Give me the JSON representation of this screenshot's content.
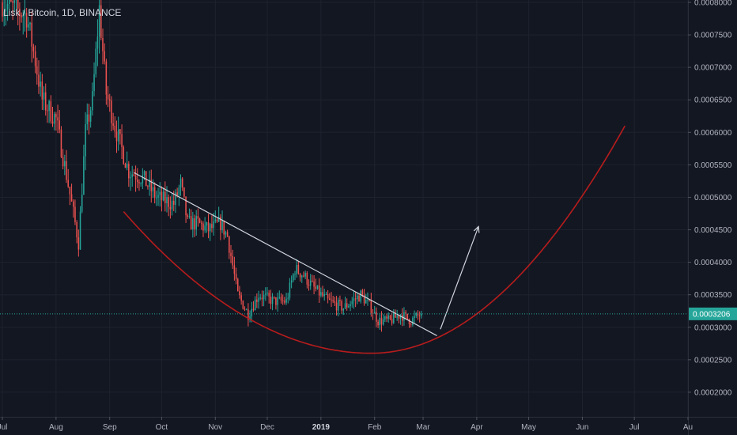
{
  "title": "Lisk / Bitcoin, 1D, BINANCE",
  "colors": {
    "background": "#131722",
    "up": "#26a69a",
    "down": "#ef5350",
    "trendline": "#d1d4dc",
    "curve": "#b71c1c",
    "arrow": "#d1d4dc",
    "price_line": "#26a69a"
  },
  "chart_data": {
    "type": "candlestick",
    "title": "Lisk / Bitcoin, 1D, BINANCE",
    "xlabel": "",
    "ylabel": "",
    "ylim": [
      0.00015,
      0.0008
    ],
    "y_ticks": [
      "0.0008000",
      "0.0007500",
      "0.0007000",
      "0.0006500",
      "0.0006000",
      "0.0005500",
      "0.0005000",
      "0.0004500",
      "0.0004000",
      "0.0003500",
      "0.0003000",
      "0.0002500",
      "0.0002000"
    ],
    "x_ticks": [
      {
        "label": "Jul",
        "date": "2018-07-01"
      },
      {
        "label": "Aug",
        "date": "2018-08-01"
      },
      {
        "label": "Sep",
        "date": "2018-09-01"
      },
      {
        "label": "Oct",
        "date": "2018-10-01"
      },
      {
        "label": "Nov",
        "date": "2018-11-01"
      },
      {
        "label": "Dec",
        "date": "2018-12-01"
      },
      {
        "label": "2019",
        "date": "2019-01-01",
        "bold": true
      },
      {
        "label": "Feb",
        "date": "2019-02-01"
      },
      {
        "label": "Mar",
        "date": "2019-03-01"
      },
      {
        "label": "Apr",
        "date": "2019-04-01"
      },
      {
        "label": "May",
        "date": "2019-05-01"
      },
      {
        "label": "Jun",
        "date": "2019-06-01"
      },
      {
        "label": "Jul",
        "date": "2019-07-01"
      },
      {
        "label": "Au",
        "date": "2019-08-01"
      }
    ],
    "current_price": "0.0003206",
    "price_path": [
      {
        "date": "2018-07-01",
        "price": 0.0008
      },
      {
        "date": "2018-07-15",
        "price": 0.00078
      },
      {
        "date": "2018-07-20",
        "price": 0.00071
      },
      {
        "date": "2018-07-24",
        "price": 0.00065
      },
      {
        "date": "2018-08-01",
        "price": 0.00062
      },
      {
        "date": "2018-08-08",
        "price": 0.00052
      },
      {
        "date": "2018-08-14",
        "price": 0.00043
      },
      {
        "date": "2018-08-18",
        "price": 0.0006
      },
      {
        "date": "2018-08-22",
        "price": 0.00065
      },
      {
        "date": "2018-08-26",
        "price": 0.00079
      },
      {
        "date": "2018-08-30",
        "price": 0.00066
      },
      {
        "date": "2018-09-05",
        "price": 0.0006
      },
      {
        "date": "2018-09-12",
        "price": 0.00054
      },
      {
        "date": "2018-09-20",
        "price": 0.00053
      },
      {
        "date": "2018-09-28",
        "price": 0.0005
      },
      {
        "date": "2018-10-08",
        "price": 0.00049
      },
      {
        "date": "2018-10-12",
        "price": 0.00052
      },
      {
        "date": "2018-10-16",
        "price": 0.00046
      },
      {
        "date": "2018-10-22",
        "price": 0.00046
      },
      {
        "date": "2018-10-28",
        "price": 0.00045
      },
      {
        "date": "2018-11-04",
        "price": 0.00046
      },
      {
        "date": "2018-11-08",
        "price": 0.00044
      },
      {
        "date": "2018-11-14",
        "price": 0.00035
      },
      {
        "date": "2018-11-20",
        "price": 0.00032
      },
      {
        "date": "2018-11-26",
        "price": 0.00035
      },
      {
        "date": "2018-12-05",
        "price": 0.00034
      },
      {
        "date": "2018-12-12",
        "price": 0.00034
      },
      {
        "date": "2018-12-17",
        "price": 0.00039
      },
      {
        "date": "2018-12-22",
        "price": 0.00038
      },
      {
        "date": "2018-12-28",
        "price": 0.00036
      },
      {
        "date": "2019-01-05",
        "price": 0.00034
      },
      {
        "date": "2019-01-14",
        "price": 0.00033
      },
      {
        "date": "2019-01-24",
        "price": 0.00035
      },
      {
        "date": "2019-01-30",
        "price": 0.00033
      },
      {
        "date": "2019-02-03",
        "price": 0.00031
      },
      {
        "date": "2019-02-10",
        "price": 0.00031
      },
      {
        "date": "2019-02-16",
        "price": 0.00032
      },
      {
        "date": "2019-02-22",
        "price": 0.00031
      },
      {
        "date": "2019-02-28",
        "price": 0.000321
      }
    ],
    "annotations": [
      {
        "type": "trendline",
        "from": {
          "date": "2018-09-15",
          "price": 0.000538
        },
        "to": {
          "date": "2019-03-09",
          "price": 0.000287
        }
      },
      {
        "type": "curve",
        "from": {
          "date": "2018-09-09",
          "price": 0.000478
        },
        "bottom": {
          "date": "2019-01-30",
          "price": 0.00026
        },
        "to": {
          "date": "2019-06-26",
          "price": 0.000612
        }
      },
      {
        "type": "arrow",
        "from": {
          "date": "2019-03-11",
          "price": 0.000297
        },
        "to": {
          "date": "2019-04-02",
          "price": 0.000455
        }
      }
    ]
  }
}
